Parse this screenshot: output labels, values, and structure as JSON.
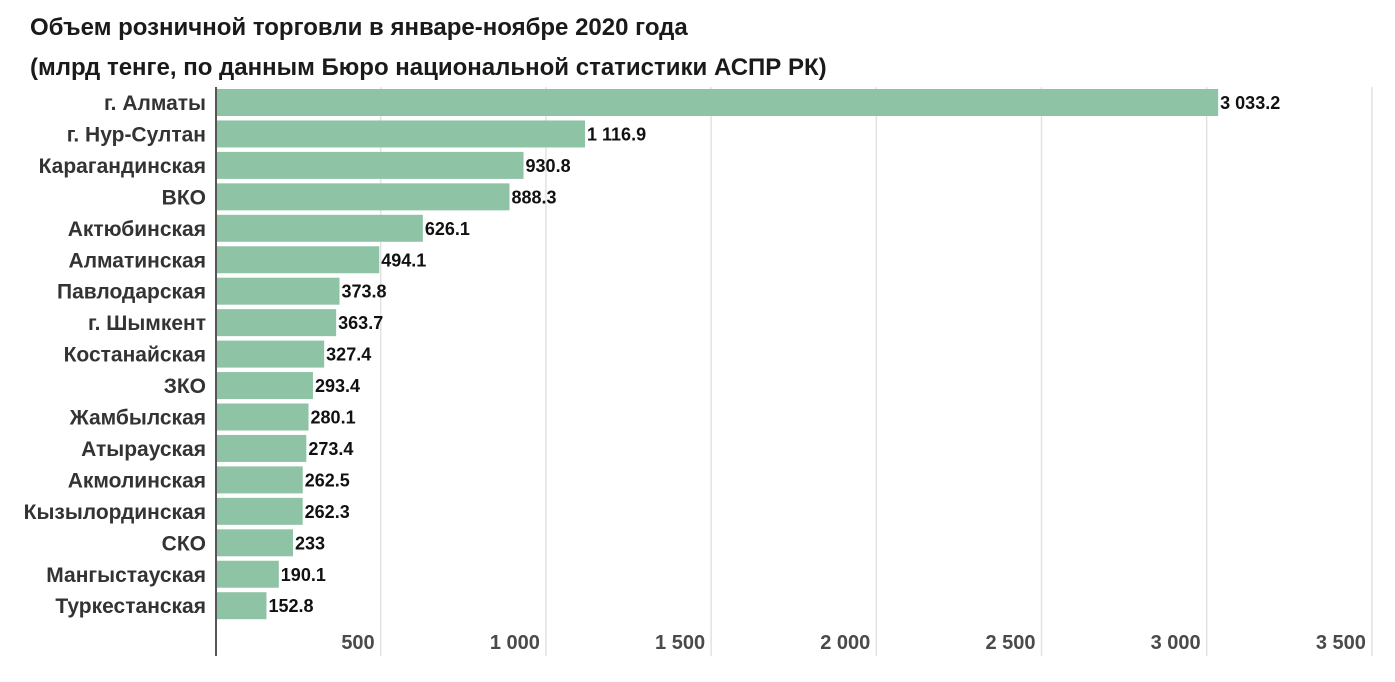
{
  "title": "Объем розничной торговли в январе-ноябре 2020 года",
  "subtitle": "(млрд тенге, по данным Бюро национальной статистики АСПР РК)",
  "colors": {
    "bar": "#8fc3a5",
    "grid": "#e2e2e2",
    "axis": "#555555"
  },
  "chart_data": {
    "type": "bar",
    "orientation": "horizontal",
    "title": "Объем розничной торговли в январе-ноябре 2020 года",
    "subtitle": "(млрд тенге, по данным Бюро национальной статистики АСПР РК)",
    "categories": [
      "г. Алматы",
      "г. Нур-Султан",
      "Карагандинская",
      "ВКО",
      "Актюбинская",
      "Алматинская",
      "Павлодарская",
      "г. Шымкент",
      "Костанайская",
      "ЗКО",
      "Жамбылская",
      "Атырауская",
      "Акмолинская",
      "Кызылординская",
      "СКО",
      "Мангыстауская",
      "Туркестанская"
    ],
    "values": [
      3033.2,
      1116.9,
      930.8,
      888.3,
      626.1,
      494.1,
      373.8,
      363.7,
      327.4,
      293.4,
      280.1,
      273.4,
      262.5,
      262.3,
      233,
      190.1,
      152.8
    ],
    "value_labels": [
      "3 033.2",
      "1 116.9",
      "930.8",
      "888.3",
      "626.1",
      "494.1",
      "373.8",
      "363.7",
      "327.4",
      "293.4",
      "280.1",
      "273.4",
      "262.5",
      "262.3",
      "233",
      "190.1",
      "152.8"
    ],
    "xlim": [
      0,
      3500
    ],
    "xticks": [
      500,
      1000,
      1500,
      2000,
      2500,
      3000,
      3500
    ],
    "xtick_labels": [
      "500",
      "1 000",
      "1 500",
      "2 000",
      "2 500",
      "3 000",
      "3 500"
    ],
    "grid": true,
    "legend": false
  }
}
